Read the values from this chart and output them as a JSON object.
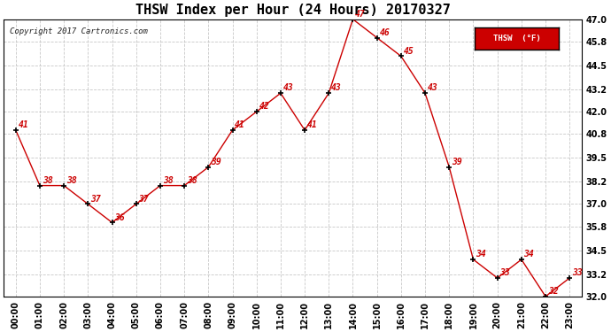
{
  "title": "THSW Index per Hour (24 Hours) 20170327",
  "copyright": "Copyright 2017 Cartronics.com",
  "legend_label": "THSW  (°F)",
  "hours": [
    "00:00",
    "01:00",
    "02:00",
    "03:00",
    "04:00",
    "05:00",
    "06:00",
    "07:00",
    "08:00",
    "09:00",
    "10:00",
    "11:00",
    "12:00",
    "13:00",
    "14:00",
    "15:00",
    "16:00",
    "17:00",
    "18:00",
    "19:00",
    "20:00",
    "21:00",
    "22:00",
    "23:00"
  ],
  "values": [
    41,
    38,
    38,
    37,
    36,
    37,
    38,
    38,
    39,
    41,
    42,
    43,
    41,
    43,
    47,
    46,
    45,
    43,
    39,
    34,
    33,
    34,
    32,
    33
  ],
  "ylim": [
    32.0,
    47.0
  ],
  "yticks": [
    32.0,
    33.2,
    34.5,
    35.8,
    37.0,
    38.2,
    39.5,
    40.8,
    42.0,
    43.2,
    44.5,
    45.8,
    47.0
  ],
  "line_color": "#cc0000",
  "marker_color": "#000000",
  "grid_color": "#c8c8c8",
  "bg_color": "#ffffff",
  "title_fontsize": 11,
  "label_fontsize": 7,
  "annotation_fontsize": 7,
  "copyright_fontsize": 6.5
}
